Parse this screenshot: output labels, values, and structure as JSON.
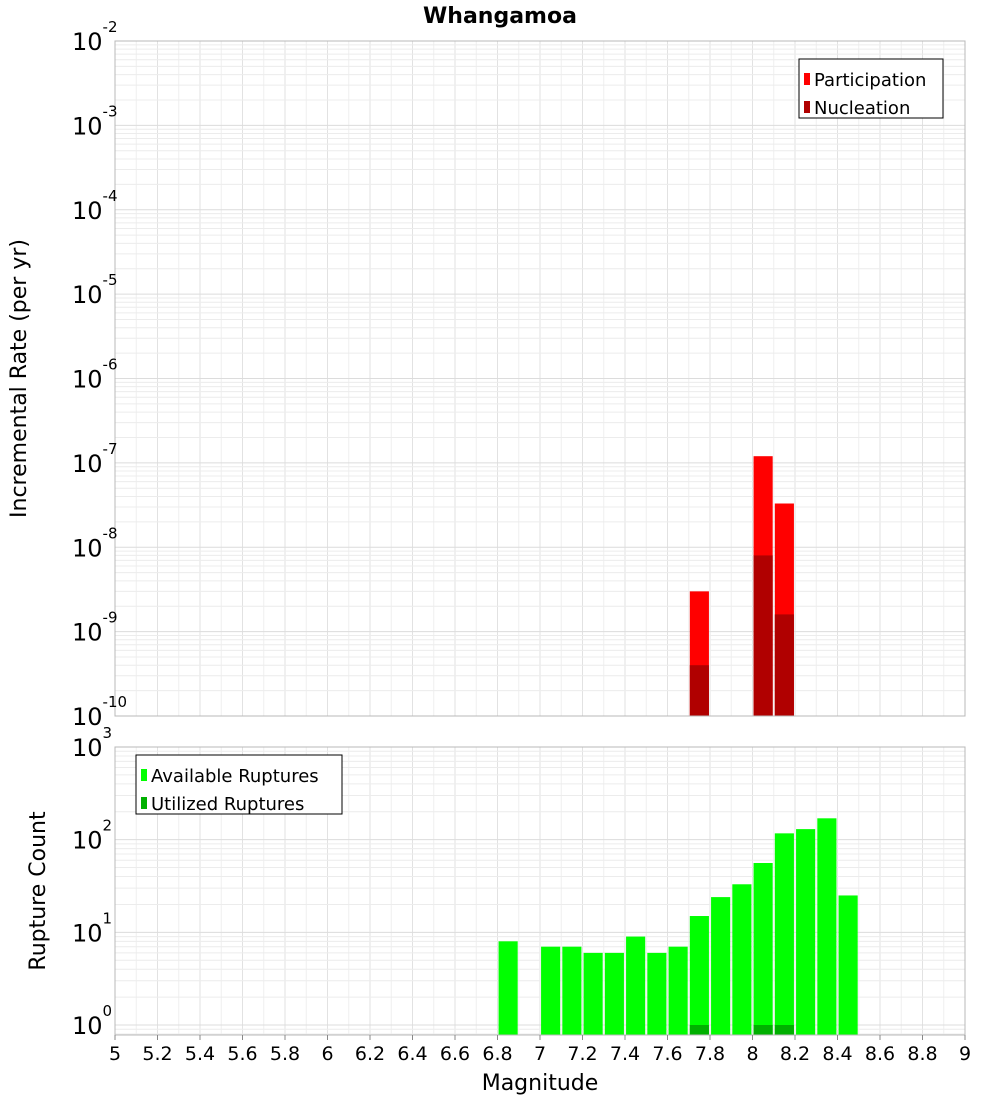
{
  "chart_data": [
    {
      "type": "bar",
      "panel": "top",
      "title": "Whangamoa",
      "ylabel": "Incremental Rate (per yr)",
      "xlabel": "",
      "xlim": [
        5,
        9
      ],
      "ylim": [
        1e-10,
        0.01
      ],
      "yscale": "log",
      "ytick_exponents": [
        -2,
        -3,
        -4,
        -5,
        -6,
        -7,
        -8,
        -9,
        -10
      ],
      "grid": true,
      "legend_position": "top-right",
      "bar_width": 0.09,
      "series": [
        {
          "name": "Participation",
          "color": "#ff0000",
          "x": [
            7.75,
            8.05,
            8.15
          ],
          "values": [
            3e-09,
            1.2e-07,
            3.3e-08
          ]
        },
        {
          "name": "Nucleation",
          "color": "#b00000",
          "x": [
            7.75,
            8.05,
            8.15
          ],
          "values": [
            4e-10,
            8e-09,
            1.6e-09
          ]
        }
      ]
    },
    {
      "type": "bar",
      "panel": "bottom",
      "title": "",
      "ylabel": "Rupture Count",
      "xlabel": "Magnitude",
      "xlim": [
        5,
        9
      ],
      "ylim": [
        0.78,
        1000
      ],
      "yscale": "log",
      "ytick_exponents": [
        3,
        2,
        1,
        0
      ],
      "grid": true,
      "legend_position": "top-left",
      "bar_width": 0.09,
      "xticks": [
        "5",
        "5.2",
        "5.4",
        "5.6",
        "5.8",
        "6",
        "6.2",
        "6.4",
        "6.6",
        "6.8",
        "7",
        "7.2",
        "7.4",
        "7.6",
        "7.8",
        "8",
        "8.2",
        "8.4",
        "8.6",
        "8.8",
        "9"
      ],
      "series": [
        {
          "name": "Available Ruptures",
          "color": "#00ff00",
          "x": [
            6.85,
            7.05,
            7.15,
            7.25,
            7.35,
            7.45,
            7.55,
            7.65,
            7.75,
            7.85,
            7.95,
            8.05,
            8.15,
            8.25,
            8.35,
            8.45
          ],
          "values": [
            8,
            7,
            7,
            6,
            6,
            9,
            6,
            7,
            15,
            24,
            33,
            56,
            117,
            130,
            170,
            25
          ]
        },
        {
          "name": "Utilized Ruptures",
          "color": "#00b000",
          "x": [
            7.75,
            8.05,
            8.15
          ],
          "values": [
            1,
            1,
            1
          ]
        }
      ]
    }
  ]
}
